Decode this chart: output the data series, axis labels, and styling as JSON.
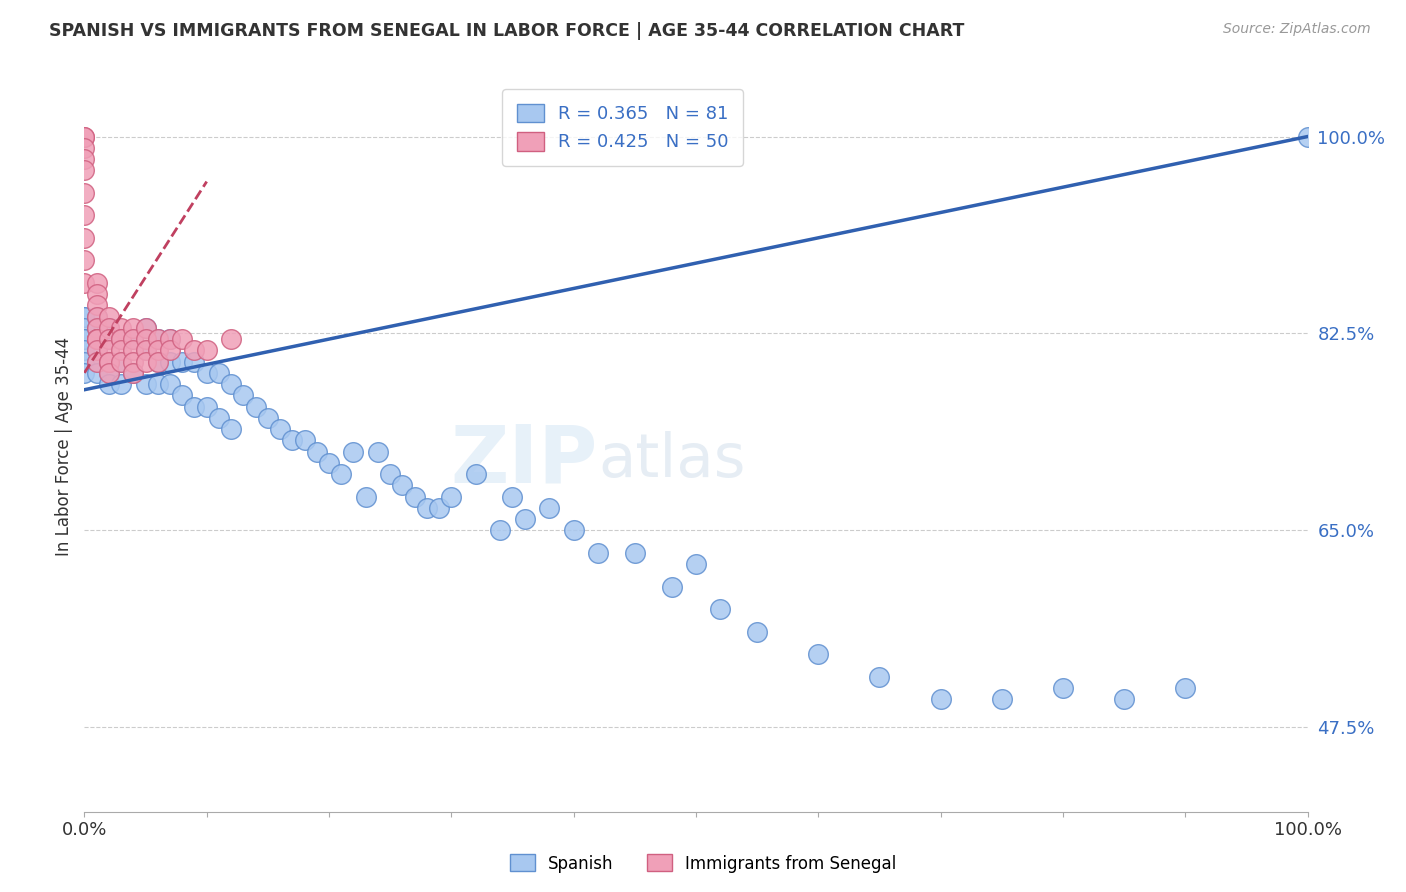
{
  "title": "SPANISH VS IMMIGRANTS FROM SENEGAL IN LABOR FORCE | AGE 35-44 CORRELATION CHART",
  "source": "Source: ZipAtlas.com",
  "ylabel": "In Labor Force | Age 35-44",
  "xlim": [
    0.0,
    1.0
  ],
  "ylim": [
    0.4,
    1.05
  ],
  "R_blue": 0.365,
  "N_blue": 81,
  "R_pink": 0.425,
  "N_pink": 50,
  "legend_label_blue": "Spanish",
  "legend_label_pink": "Immigrants from Senegal",
  "blue_color": "#A8C8F0",
  "pink_color": "#F0A0B8",
  "blue_edge": "#6090D0",
  "pink_edge": "#D06080",
  "blue_line_color": "#3060B0",
  "pink_line_color": "#C04060",
  "watermark_zip": "ZIP",
  "watermark_atlas": "atlas",
  "background_color": "#FFFFFF",
  "blue_scatter_x": [
    0.0,
    0.0,
    0.0,
    0.0,
    0.0,
    0.0,
    0.0,
    0.0,
    0.01,
    0.01,
    0.01,
    0.01,
    0.01,
    0.01,
    0.02,
    0.02,
    0.02,
    0.02,
    0.02,
    0.03,
    0.03,
    0.03,
    0.04,
    0.04,
    0.05,
    0.05,
    0.05,
    0.06,
    0.06,
    0.06,
    0.07,
    0.07,
    0.07,
    0.08,
    0.08,
    0.09,
    0.09,
    0.1,
    0.1,
    0.11,
    0.11,
    0.12,
    0.12,
    0.13,
    0.14,
    0.15,
    0.16,
    0.17,
    0.18,
    0.19,
    0.2,
    0.21,
    0.22,
    0.23,
    0.24,
    0.25,
    0.26,
    0.27,
    0.28,
    0.29,
    0.3,
    0.32,
    0.34,
    0.35,
    0.36,
    0.38,
    0.4,
    0.42,
    0.45,
    0.48,
    0.5,
    0.52,
    0.55,
    0.6,
    0.65,
    0.7,
    0.75,
    0.8,
    0.85,
    0.9,
    1.0
  ],
  "blue_scatter_y": [
    0.84,
    0.84,
    0.83,
    0.82,
    0.82,
    0.81,
    0.8,
    0.79,
    0.84,
    0.83,
    0.82,
    0.81,
    0.8,
    0.79,
    0.83,
    0.82,
    0.8,
    0.79,
    0.78,
    0.82,
    0.8,
    0.78,
    0.82,
    0.79,
    0.83,
    0.81,
    0.78,
    0.82,
    0.8,
    0.78,
    0.82,
    0.8,
    0.78,
    0.8,
    0.77,
    0.8,
    0.76,
    0.79,
    0.76,
    0.79,
    0.75,
    0.78,
    0.74,
    0.77,
    0.76,
    0.75,
    0.74,
    0.73,
    0.73,
    0.72,
    0.71,
    0.7,
    0.72,
    0.68,
    0.72,
    0.7,
    0.69,
    0.68,
    0.67,
    0.67,
    0.68,
    0.7,
    0.65,
    0.68,
    0.66,
    0.67,
    0.65,
    0.63,
    0.63,
    0.6,
    0.62,
    0.58,
    0.56,
    0.54,
    0.52,
    0.5,
    0.5,
    0.51,
    0.5,
    0.51,
    1.0
  ],
  "pink_scatter_x": [
    0.0,
    0.0,
    0.0,
    0.0,
    0.0,
    0.0,
    0.0,
    0.0,
    0.0,
    0.0,
    0.01,
    0.01,
    0.01,
    0.01,
    0.01,
    0.01,
    0.01,
    0.01,
    0.01,
    0.01,
    0.02,
    0.02,
    0.02,
    0.02,
    0.02,
    0.02,
    0.02,
    0.03,
    0.03,
    0.03,
    0.03,
    0.03,
    0.04,
    0.04,
    0.04,
    0.04,
    0.04,
    0.05,
    0.05,
    0.05,
    0.05,
    0.06,
    0.06,
    0.06,
    0.07,
    0.07,
    0.08,
    0.09,
    0.1,
    0.12
  ],
  "pink_scatter_y": [
    1.0,
    1.0,
    0.99,
    0.98,
    0.97,
    0.95,
    0.93,
    0.91,
    0.89,
    0.87,
    0.87,
    0.86,
    0.85,
    0.84,
    0.83,
    0.82,
    0.82,
    0.82,
    0.81,
    0.8,
    0.84,
    0.83,
    0.82,
    0.81,
    0.8,
    0.8,
    0.79,
    0.83,
    0.82,
    0.82,
    0.81,
    0.8,
    0.83,
    0.82,
    0.81,
    0.8,
    0.79,
    0.83,
    0.82,
    0.81,
    0.8,
    0.82,
    0.81,
    0.8,
    0.82,
    0.81,
    0.82,
    0.81,
    0.81,
    0.82
  ],
  "blue_line_x0": 0.0,
  "blue_line_y0": 0.775,
  "blue_line_x1": 1.0,
  "blue_line_y1": 1.0,
  "pink_line_x0": 0.0,
  "pink_line_y0": 0.79,
  "pink_line_x1": 0.1,
  "pink_line_y1": 0.96,
  "ytick_positions": [
    0.475,
    0.65,
    0.825,
    1.0
  ],
  "ytick_labels": [
    "47.5%",
    "65.0%",
    "82.5%",
    "100.0%"
  ]
}
